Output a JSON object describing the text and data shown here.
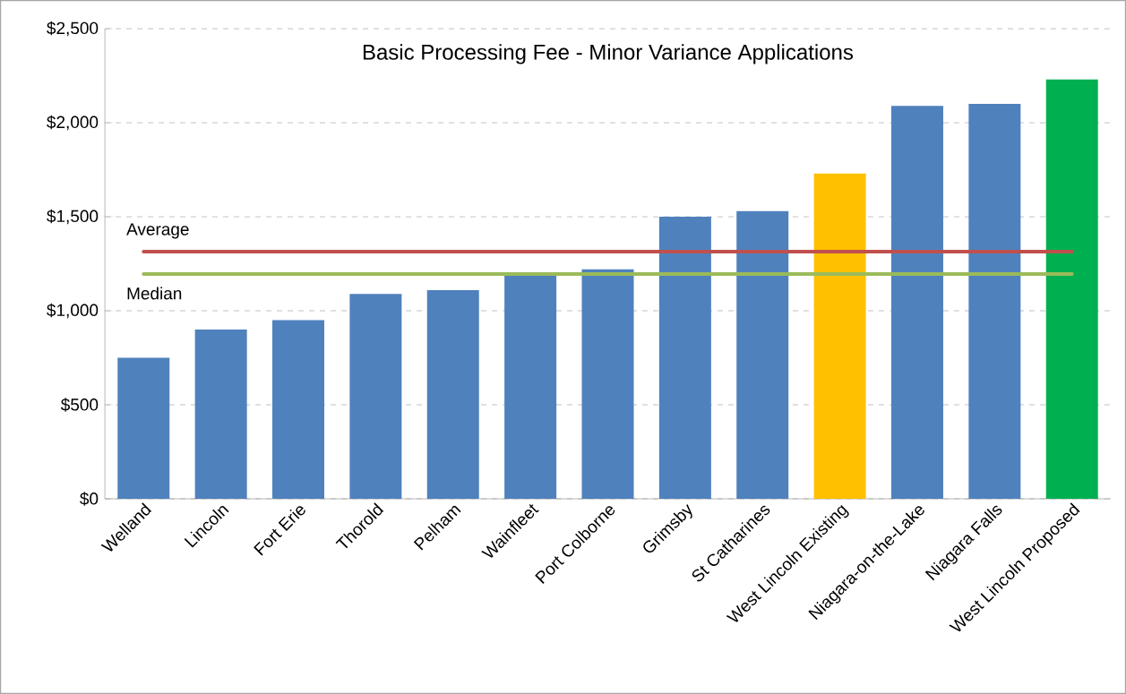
{
  "chart_data": {
    "type": "bar",
    "title": "Basic Processing Fee - Minor Variance Applications",
    "categories": [
      "Welland",
      "Lincoln",
      "Fort Erie",
      "Thorold",
      "Pelham",
      "Wainfleet",
      "Port Colborne",
      "Grimsby",
      "St Catharines",
      "West Lincoln Existing",
      "Niagara-on-the-Lake",
      "Niagara Falls",
      "West Lincoln Proposed"
    ],
    "values": [
      750,
      900,
      950,
      1090,
      1110,
      1200,
      1220,
      1500,
      1530,
      1730,
      2090,
      2100,
      2230
    ],
    "colors": [
      "#4f81bd",
      "#4f81bd",
      "#4f81bd",
      "#4f81bd",
      "#4f81bd",
      "#4f81bd",
      "#4f81bd",
      "#4f81bd",
      "#4f81bd",
      "#ffc000",
      "#4f81bd",
      "#4f81bd",
      "#00b050"
    ],
    "ylim": [
      0,
      2500
    ],
    "yticks": [
      {
        "value": 0,
        "label": "$0"
      },
      {
        "value": 500,
        "label": "$500"
      },
      {
        "value": 1000,
        "label": "$1,000"
      },
      {
        "value": 1500,
        "label": "$1,500"
      },
      {
        "value": 2000,
        "label": "$2,000"
      },
      {
        "value": 2500,
        "label": "$2,500"
      }
    ],
    "grid": "y",
    "ref_lines": [
      {
        "axis": "y",
        "value": 1315,
        "label": "Average",
        "color": "#c0504d"
      },
      {
        "axis": "y",
        "value": 1195,
        "label": "Median",
        "color": "#9bbb59"
      }
    ]
  }
}
